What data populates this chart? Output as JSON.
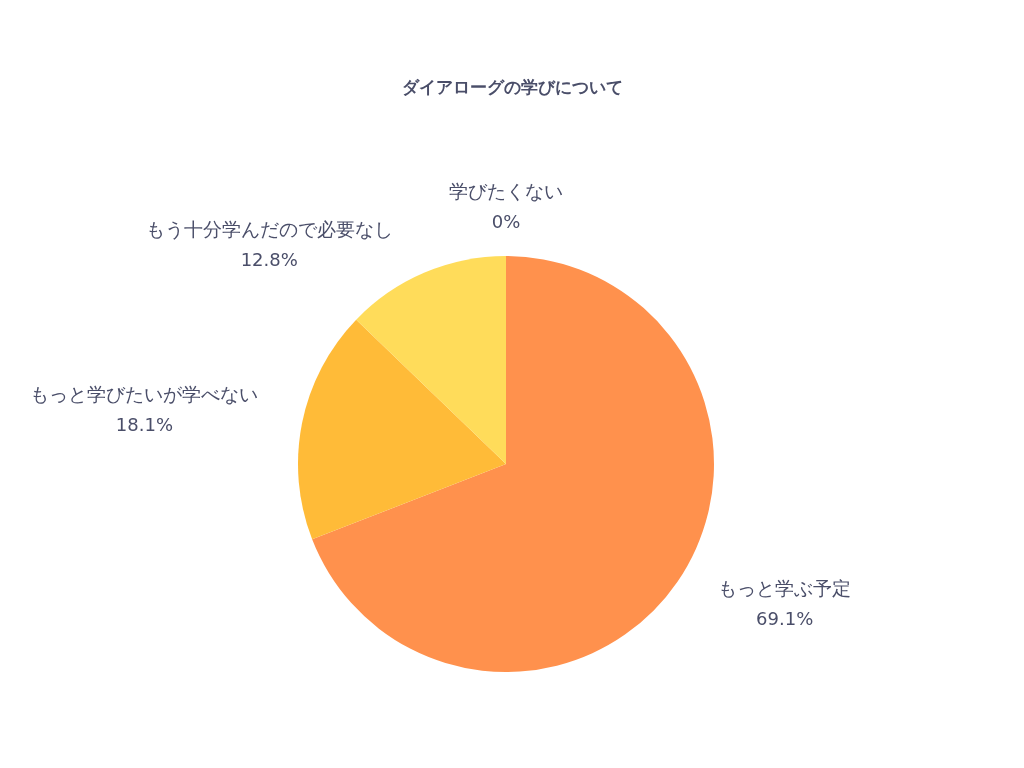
{
  "chart_data": {
    "type": "pie",
    "title": "ダイアローグの学びについて",
    "categories": [
      "もっと学ぶ予定",
      "もっと学びたいが学べない",
      "もう十分学んだので必要なし",
      "学びたくない"
    ],
    "values": [
      69.1,
      18.1,
      12.8,
      0
    ],
    "colors": [
      "#ff914d",
      "#ffbb38",
      "#ffdc5a",
      "#ffe98a"
    ],
    "value_labels": [
      "69.1%",
      "18.1%",
      "12.8%",
      "0%"
    ],
    "legend": false
  }
}
